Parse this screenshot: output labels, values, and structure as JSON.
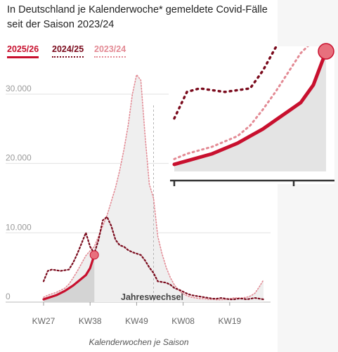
{
  "title": "In Deutschland je Kalenderwoche* gemeldete Covid-Fälle seit der Saison 2023/24",
  "legend": {
    "s1": "2025/26",
    "s2": "2024/25",
    "s3": "2023/24"
  },
  "colors": {
    "s1": "#c8102e",
    "s2": "#7a0a1c",
    "s3": "#e38a94"
  },
  "annotation": "Jahreswechsel",
  "chart_data": {
    "type": "line",
    "xlabel": "Kalenderwochen je Saison",
    "ylabel": "",
    "x_ticks": [
      "KW27",
      "KW38",
      "KW49",
      "KW08",
      "KW19"
    ],
    "y_ticks": [
      "0",
      "10.000",
      "20.000",
      "30.000"
    ],
    "ylim": [
      0,
      33000
    ],
    "x_index_range": [
      0,
      52
    ],
    "jahreswechsel_index": 26,
    "series": [
      {
        "name": "2025/26",
        "style": "solid",
        "x": [
          0,
          1,
          2,
          3,
          4,
          5,
          6,
          7,
          8,
          9,
          10,
          11,
          12
        ],
        "values": [
          400,
          600,
          800,
          1000,
          1300,
          1600,
          2000,
          2400,
          2900,
          3400,
          3900,
          4900,
          6800
        ]
      },
      {
        "name": "2024/25",
        "style": "dotted",
        "x": [
          0,
          1,
          2,
          3,
          4,
          5,
          6,
          7,
          8,
          9,
          10,
          11,
          12,
          13,
          14,
          15,
          16,
          17,
          18,
          19,
          20,
          21,
          22,
          23,
          24,
          25,
          26,
          27,
          28,
          29,
          30,
          31,
          32,
          33,
          34,
          35,
          36,
          37,
          38,
          39,
          40,
          41,
          42,
          43,
          44,
          45,
          46,
          47,
          48,
          49,
          50,
          51,
          52
        ],
        "values": [
          3000,
          4500,
          4700,
          4600,
          4500,
          4600,
          4700,
          5700,
          7000,
          8500,
          10000,
          8000,
          7000,
          9000,
          11800,
          12300,
          11000,
          9000,
          8200,
          8000,
          7500,
          7200,
          7000,
          6800,
          6000,
          5000,
          4200,
          3000,
          2900,
          2800,
          2500,
          2000,
          1800,
          1500,
          1200,
          1000,
          900,
          800,
          700,
          600,
          500,
          500,
          600,
          500,
          400,
          400,
          500,
          500,
          400,
          500,
          600,
          500,
          400
        ]
      },
      {
        "name": "2023/24",
        "style": "dotted",
        "x": [
          0,
          1,
          2,
          3,
          4,
          5,
          6,
          7,
          8,
          9,
          10,
          11,
          12,
          13,
          14,
          15,
          16,
          17,
          18,
          19,
          20,
          21,
          22,
          23,
          24,
          25,
          26,
          27,
          28,
          29,
          30,
          31,
          32,
          33,
          34,
          35,
          36,
          37,
          38,
          39,
          40,
          41,
          42,
          43,
          44,
          45,
          46,
          47,
          48,
          49,
          50,
          51,
          52
        ],
        "values": [
          700,
          1000,
          1200,
          1400,
          1700,
          2000,
          2600,
          3500,
          4500,
          5600,
          6700,
          7400,
          8000,
          9500,
          11000,
          12500,
          14500,
          16500,
          19000,
          22000,
          25500,
          30000,
          32800,
          32000,
          24000,
          17000,
          15000,
          9500,
          7000,
          5000,
          3500,
          2400,
          1700,
          1200,
          900,
          700,
          600,
          500,
          500,
          400,
          400,
          350,
          350,
          400,
          500,
          600,
          600,
          600,
          700,
          900,
          1300,
          2200,
          3200
        ]
      }
    ],
    "inset": {
      "description": "zoomed view of 2025/26 trend",
      "series": [
        {
          "name": "2025/26",
          "x": [
            0,
            1,
            2,
            3,
            4,
            5,
            6,
            7,
            8,
            9,
            10,
            11,
            12
          ],
          "values": [
            400,
            600,
            800,
            1000,
            1300,
            1600,
            2000,
            2400,
            2900,
            3400,
            3900,
            4900,
            6800
          ]
        },
        {
          "name": "2024/25",
          "x": [
            0,
            1,
            2,
            3,
            4,
            5,
            6,
            7,
            8,
            9,
            10,
            11,
            12
          ],
          "values": [
            3000,
            4500,
            4700,
            4600,
            4500,
            4600,
            4700,
            5700,
            7000,
            8500,
            10000,
            8000,
            7000
          ]
        },
        {
          "name": "2023/24",
          "x": [
            0,
            1,
            2,
            3,
            4,
            5,
            6,
            7,
            8,
            9,
            10,
            11,
            12
          ],
          "values": [
            700,
            1000,
            1200,
            1400,
            1700,
            2000,
            2600,
            3500,
            4500,
            5600,
            6700,
            7400,
            8000
          ]
        }
      ]
    }
  }
}
